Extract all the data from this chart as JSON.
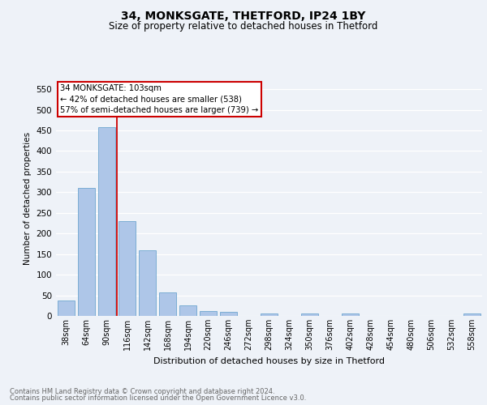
{
  "title1": "34, MONKSGATE, THETFORD, IP24 1BY",
  "title2": "Size of property relative to detached houses in Thetford",
  "xlabel": "Distribution of detached houses by size in Thetford",
  "ylabel": "Number of detached properties",
  "footer1": "Contains HM Land Registry data © Crown copyright and database right 2024.",
  "footer2": "Contains public sector information licensed under the Open Government Licence v3.0.",
  "categories": [
    "38sqm",
    "64sqm",
    "90sqm",
    "116sqm",
    "142sqm",
    "168sqm",
    "194sqm",
    "220sqm",
    "246sqm",
    "272sqm",
    "298sqm",
    "324sqm",
    "350sqm",
    "376sqm",
    "402sqm",
    "428sqm",
    "454sqm",
    "480sqm",
    "506sqm",
    "532sqm",
    "558sqm"
  ],
  "values": [
    38,
    311,
    457,
    230,
    160,
    57,
    25,
    11,
    9,
    0,
    5,
    0,
    5,
    0,
    5,
    0,
    0,
    0,
    0,
    0,
    5
  ],
  "bar_color": "#aec6e8",
  "bar_edge_color": "#7badd4",
  "property_bin_index": 2,
  "red_line_color": "#cc0000",
  "annotation_text": "34 MONKSGATE: 103sqm\n← 42% of detached houses are smaller (538)\n57% of semi-detached houses are larger (739) →",
  "annotation_box_color": "#ffffff",
  "annotation_box_edge_color": "#cc0000",
  "ylim": [
    0,
    570
  ],
  "yticks": [
    0,
    50,
    100,
    150,
    200,
    250,
    300,
    350,
    400,
    450,
    500,
    550
  ],
  "bg_color": "#eef2f8",
  "plot_bg_color": "#eef2f8",
  "grid_color": "#ffffff",
  "title1_fontsize": 10,
  "title2_fontsize": 8.5,
  "xlabel_fontsize": 8,
  "ylabel_fontsize": 7.5,
  "tick_fontsize": 7,
  "ytick_fontsize": 7.5,
  "footer_fontsize": 6,
  "footer_color": "#666666"
}
